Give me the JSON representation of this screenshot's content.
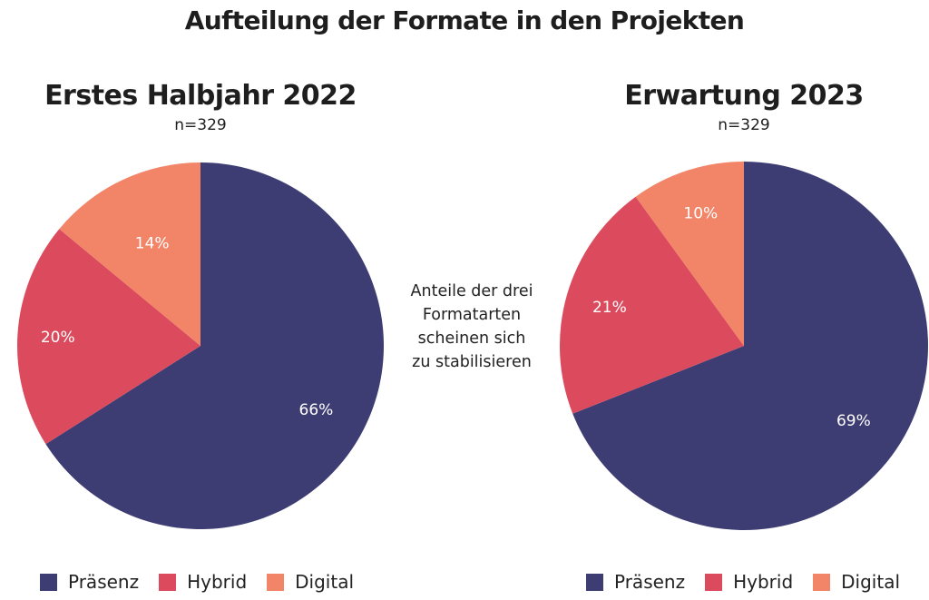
{
  "title": "Aufteilung der Formate in den Projekten",
  "note": [
    "Anteile der drei",
    "Formatarten",
    "scheinen sich",
    "zu stabilisieren"
  ],
  "colors": {
    "Präsenz": "#3d3d73",
    "Hybrid": "#dc4a5d",
    "Digital": "#f28468"
  },
  "chart_data": [
    {
      "type": "pie",
      "title": "Erstes Halbjahr 2022",
      "subtitle": "n=329",
      "categories": [
        "Präsenz",
        "Hybrid",
        "Digital"
      ],
      "values": [
        66,
        20,
        14
      ],
      "labels": [
        "66%",
        "20%",
        "14%"
      ],
      "start": "12 o'clock, clockwise",
      "legend": "bottom",
      "legend_entries": [
        "Präsenz",
        "Hybrid",
        "Digital"
      ]
    },
    {
      "type": "pie",
      "title": "Erwartung 2023",
      "subtitle": "n=329",
      "categories": [
        "Präsenz",
        "Hybrid",
        "Digital"
      ],
      "values": [
        69,
        21,
        10
      ],
      "labels": [
        "69%",
        "21%",
        "10%"
      ],
      "start": "12 o'clock, clockwise",
      "legend": "bottom",
      "legend_entries": [
        "Präsenz",
        "Hybrid",
        "Digital"
      ]
    }
  ]
}
